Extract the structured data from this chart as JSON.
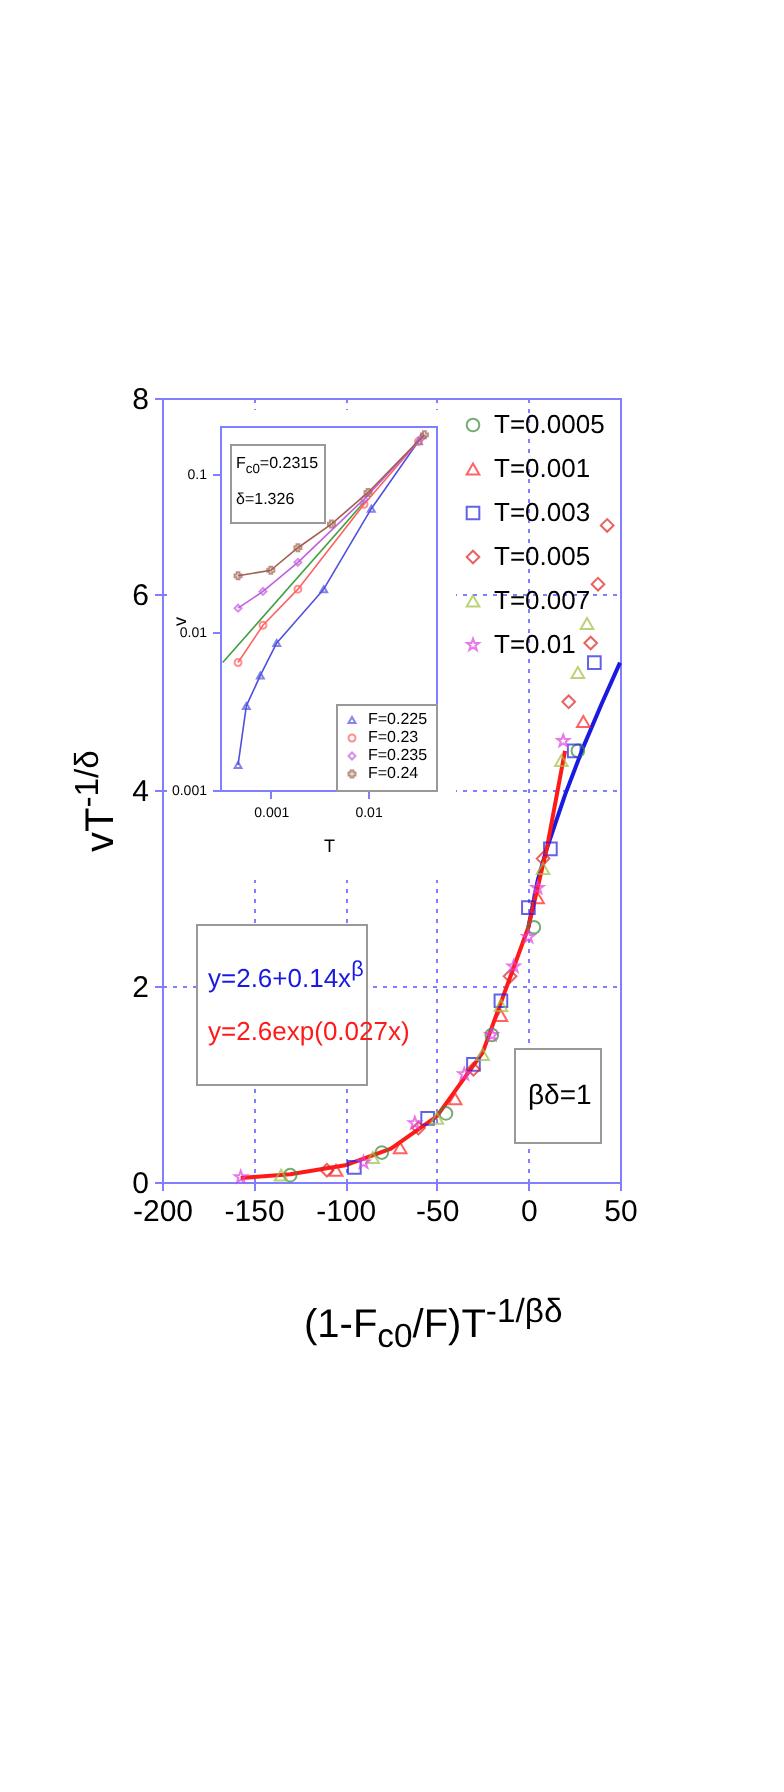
{
  "chart_data": [
    {
      "type": "scatter",
      "xlabel": "(1-F$_{c0}$/F)T$^{-1/βδ}$",
      "ylabel": "vT$^{-1/δ}$",
      "xlim": [
        -200,
        50
      ],
      "xticks": [
        -200,
        -150,
        -100,
        -50,
        0,
        50
      ],
      "ylim": [
        0,
        8
      ],
      "yticks": [
        0,
        2,
        4,
        6,
        8
      ],
      "grid": true,
      "legend": "top right",
      "annotations": [
        "y=2.6+0.14x$^{β}$",
        "y=2.6exp(0.027x)",
        "βδ=1"
      ],
      "series": [
        {
          "type": "line",
          "color": "#1a1ae0",
          "marker": "none",
          "x": [
            0,
            5,
            10,
            20,
            30,
            40,
            50
          ],
          "values": [
            2.6,
            3.07,
            3.4,
            3.95,
            4.44,
            4.88,
            5.3
          ]
        },
        {
          "type": "line",
          "color": "#ff1a1a",
          "marker": "none",
          "x": [
            -157,
            -130,
            -100,
            -75,
            -50,
            -25,
            0,
            10,
            20
          ],
          "values": [
            0.04,
            0.08,
            0.17,
            0.34,
            0.67,
            1.32,
            2.6,
            3.4,
            4.4
          ]
        },
        {
          "name": "T=0.0005",
          "color": "#3a8a3a",
          "marker": "circle",
          "x": [
            -130,
            -80,
            -45,
            -20,
            3,
            27
          ],
          "values": [
            0.07,
            0.3,
            0.7,
            1.5,
            2.6,
            4.4
          ]
        },
        {
          "name": "T=0.001",
          "color": "#ff2020",
          "marker": "triangle",
          "x": [
            -105,
            -70,
            -40,
            -15,
            5,
            30
          ],
          "values": [
            0.12,
            0.35,
            0.85,
            1.7,
            2.9,
            4.7
          ]
        },
        {
          "name": "T=0.003",
          "color": "#2020e0",
          "marker": "square",
          "x": [
            -95,
            -55,
            -30,
            -15,
            0,
            12,
            25,
            36
          ],
          "values": [
            0.15,
            0.65,
            1.2,
            1.85,
            2.8,
            3.4,
            4.4,
            5.3
          ]
        },
        {
          "name": "T=0.005",
          "color": "#e02020",
          "marker": "diamond",
          "x": [
            -110,
            -60,
            -30,
            -10,
            8,
            22,
            34,
            38,
            43
          ],
          "values": [
            0.12,
            0.55,
            1.15,
            2.1,
            3.3,
            4.9,
            5.5,
            6.1,
            6.7
          ]
        },
        {
          "name": "T=0.007",
          "color": "#a0c040",
          "marker": "triangle",
          "x": [
            -135,
            -85,
            -50,
            -25,
            -15,
            8,
            18,
            27,
            32
          ],
          "values": [
            0.07,
            0.25,
            0.65,
            1.3,
            1.8,
            3.2,
            4.3,
            5.2,
            5.7
          ]
        },
        {
          "name": "T=0.01",
          "color": "#e040e0",
          "marker": "star",
          "x": [
            -157,
            -90,
            -62,
            -35,
            -20,
            -8,
            0,
            5,
            19
          ],
          "values": [
            0.05,
            0.2,
            0.6,
            1.1,
            1.5,
            2.2,
            2.5,
            3.0,
            4.5
          ]
        }
      ]
    },
    {
      "type": "line",
      "xlabel": "T",
      "ylabel": "v",
      "log": "xy",
      "xlim": [
        0.0003,
        0.05
      ],
      "xticks": [
        0.001,
        0.01
      ],
      "ylim": [
        0.001,
        0.2
      ],
      "yticks": [
        0.001,
        0.01,
        0.1
      ],
      "legend": "bottom right",
      "annotations": [
        "F$_{c0}$=0.2315",
        "δ=1.326"
      ],
      "series": [
        {
          "color": "#40a040",
          "marker": "none",
          "x": [
            0.00032,
            0.0091
          ],
          "values": [
            0.0064,
            0.066
          ]
        },
        {
          "name": "F=0.225",
          "color": "#5050e0",
          "marker": "triangle",
          "x": [
            0.00046,
            0.00056,
            0.00078,
            0.00115,
            0.0035,
            0.0108,
            0.033
          ],
          "values": [
            0.00144,
            0.0034,
            0.0053,
            0.0085,
            0.0186,
            0.06,
            0.16
          ]
        },
        {
          "name": "F=0.23",
          "color": "#ff6060",
          "marker": "circle",
          "x": [
            0.00046,
            0.00083,
            0.0019,
            0.0091,
            0.033
          ],
          "values": [
            0.0064,
            0.011,
            0.0186,
            0.064,
            0.16
          ]
        },
        {
          "name": "F=0.235",
          "color": "#c060e0",
          "marker": "diamond",
          "x": [
            0.00046,
            0.00083,
            0.0019,
            0.0091,
            0.036
          ],
          "values": [
            0.0141,
            0.018,
            0.0275,
            0.069,
            0.17
          ]
        },
        {
          "name": "F=0.24",
          "color": "#a06050",
          "marker": "cross",
          "x": [
            0.00046,
            0.001,
            0.0019,
            0.0042,
            0.01,
            0.038
          ],
          "values": [
            0.0226,
            0.0245,
            0.034,
            0.048,
            0.076,
            0.176
          ]
        }
      ]
    }
  ]
}
